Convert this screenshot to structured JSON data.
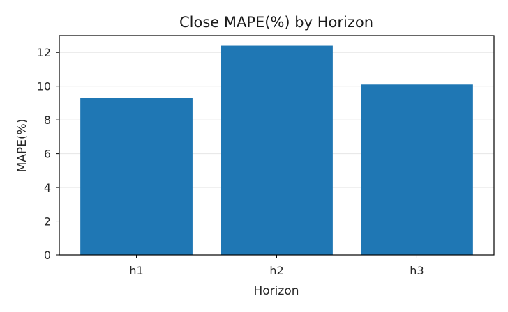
{
  "chart_data": {
    "type": "bar",
    "title": "Close MAPE(%) by Horizon",
    "xlabel": "Horizon",
    "ylabel": "MAPE(%)",
    "categories": [
      "h1",
      "h2",
      "h3"
    ],
    "values": [
      9.3,
      12.4,
      10.1
    ],
    "ylim": [
      0,
      13
    ],
    "yticks": [
      0,
      2,
      4,
      6,
      8,
      10,
      12
    ],
    "grid": true,
    "legend": "none",
    "bar_color": "#1f77b4",
    "grid_color": "#e6e6e6",
    "axis_color": "#000000"
  }
}
